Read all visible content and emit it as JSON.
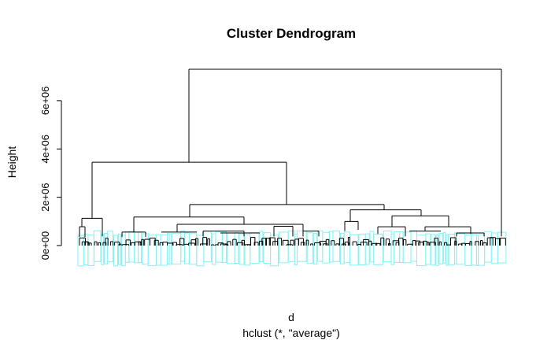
{
  "chart_data": {
    "type": "dendrogram",
    "title": "Cluster Dendrogram",
    "xlabel": "d",
    "sub": "hclust (*, \"average\")",
    "ylabel": "Height",
    "ylim": [
      0,
      7300000
    ],
    "yticks": [
      {
        "value": 0,
        "label": "0e+00"
      },
      {
        "value": 2000000,
        "label": "2e+06"
      },
      {
        "value": 4000000,
        "label": "4e+06"
      },
      {
        "value": 6000000,
        "label": "6e+06"
      }
    ],
    "branch_color": "#000000",
    "rect_color": "#87f2f2",
    "merges": [
      {
        "left": [
          0.005,
          0.028
        ],
        "right": [
          0.12,
          0.5
        ],
        "height": 3450000,
        "rect": [
          0.0,
          0.49
        ]
      },
      {
        "left": [
          0.0,
          0.12
        ],
        "right": [
          0.0,
          0.0
        ],
        "height": 0,
        "rect": null
      },
      {
        "left": [
          0.12,
          0.95
        ],
        "right": [
          0.5,
          0.5
        ],
        "height": 0,
        "rect": null
      }
    ],
    "root_height": 7300000,
    "rect_height": 420000
  }
}
